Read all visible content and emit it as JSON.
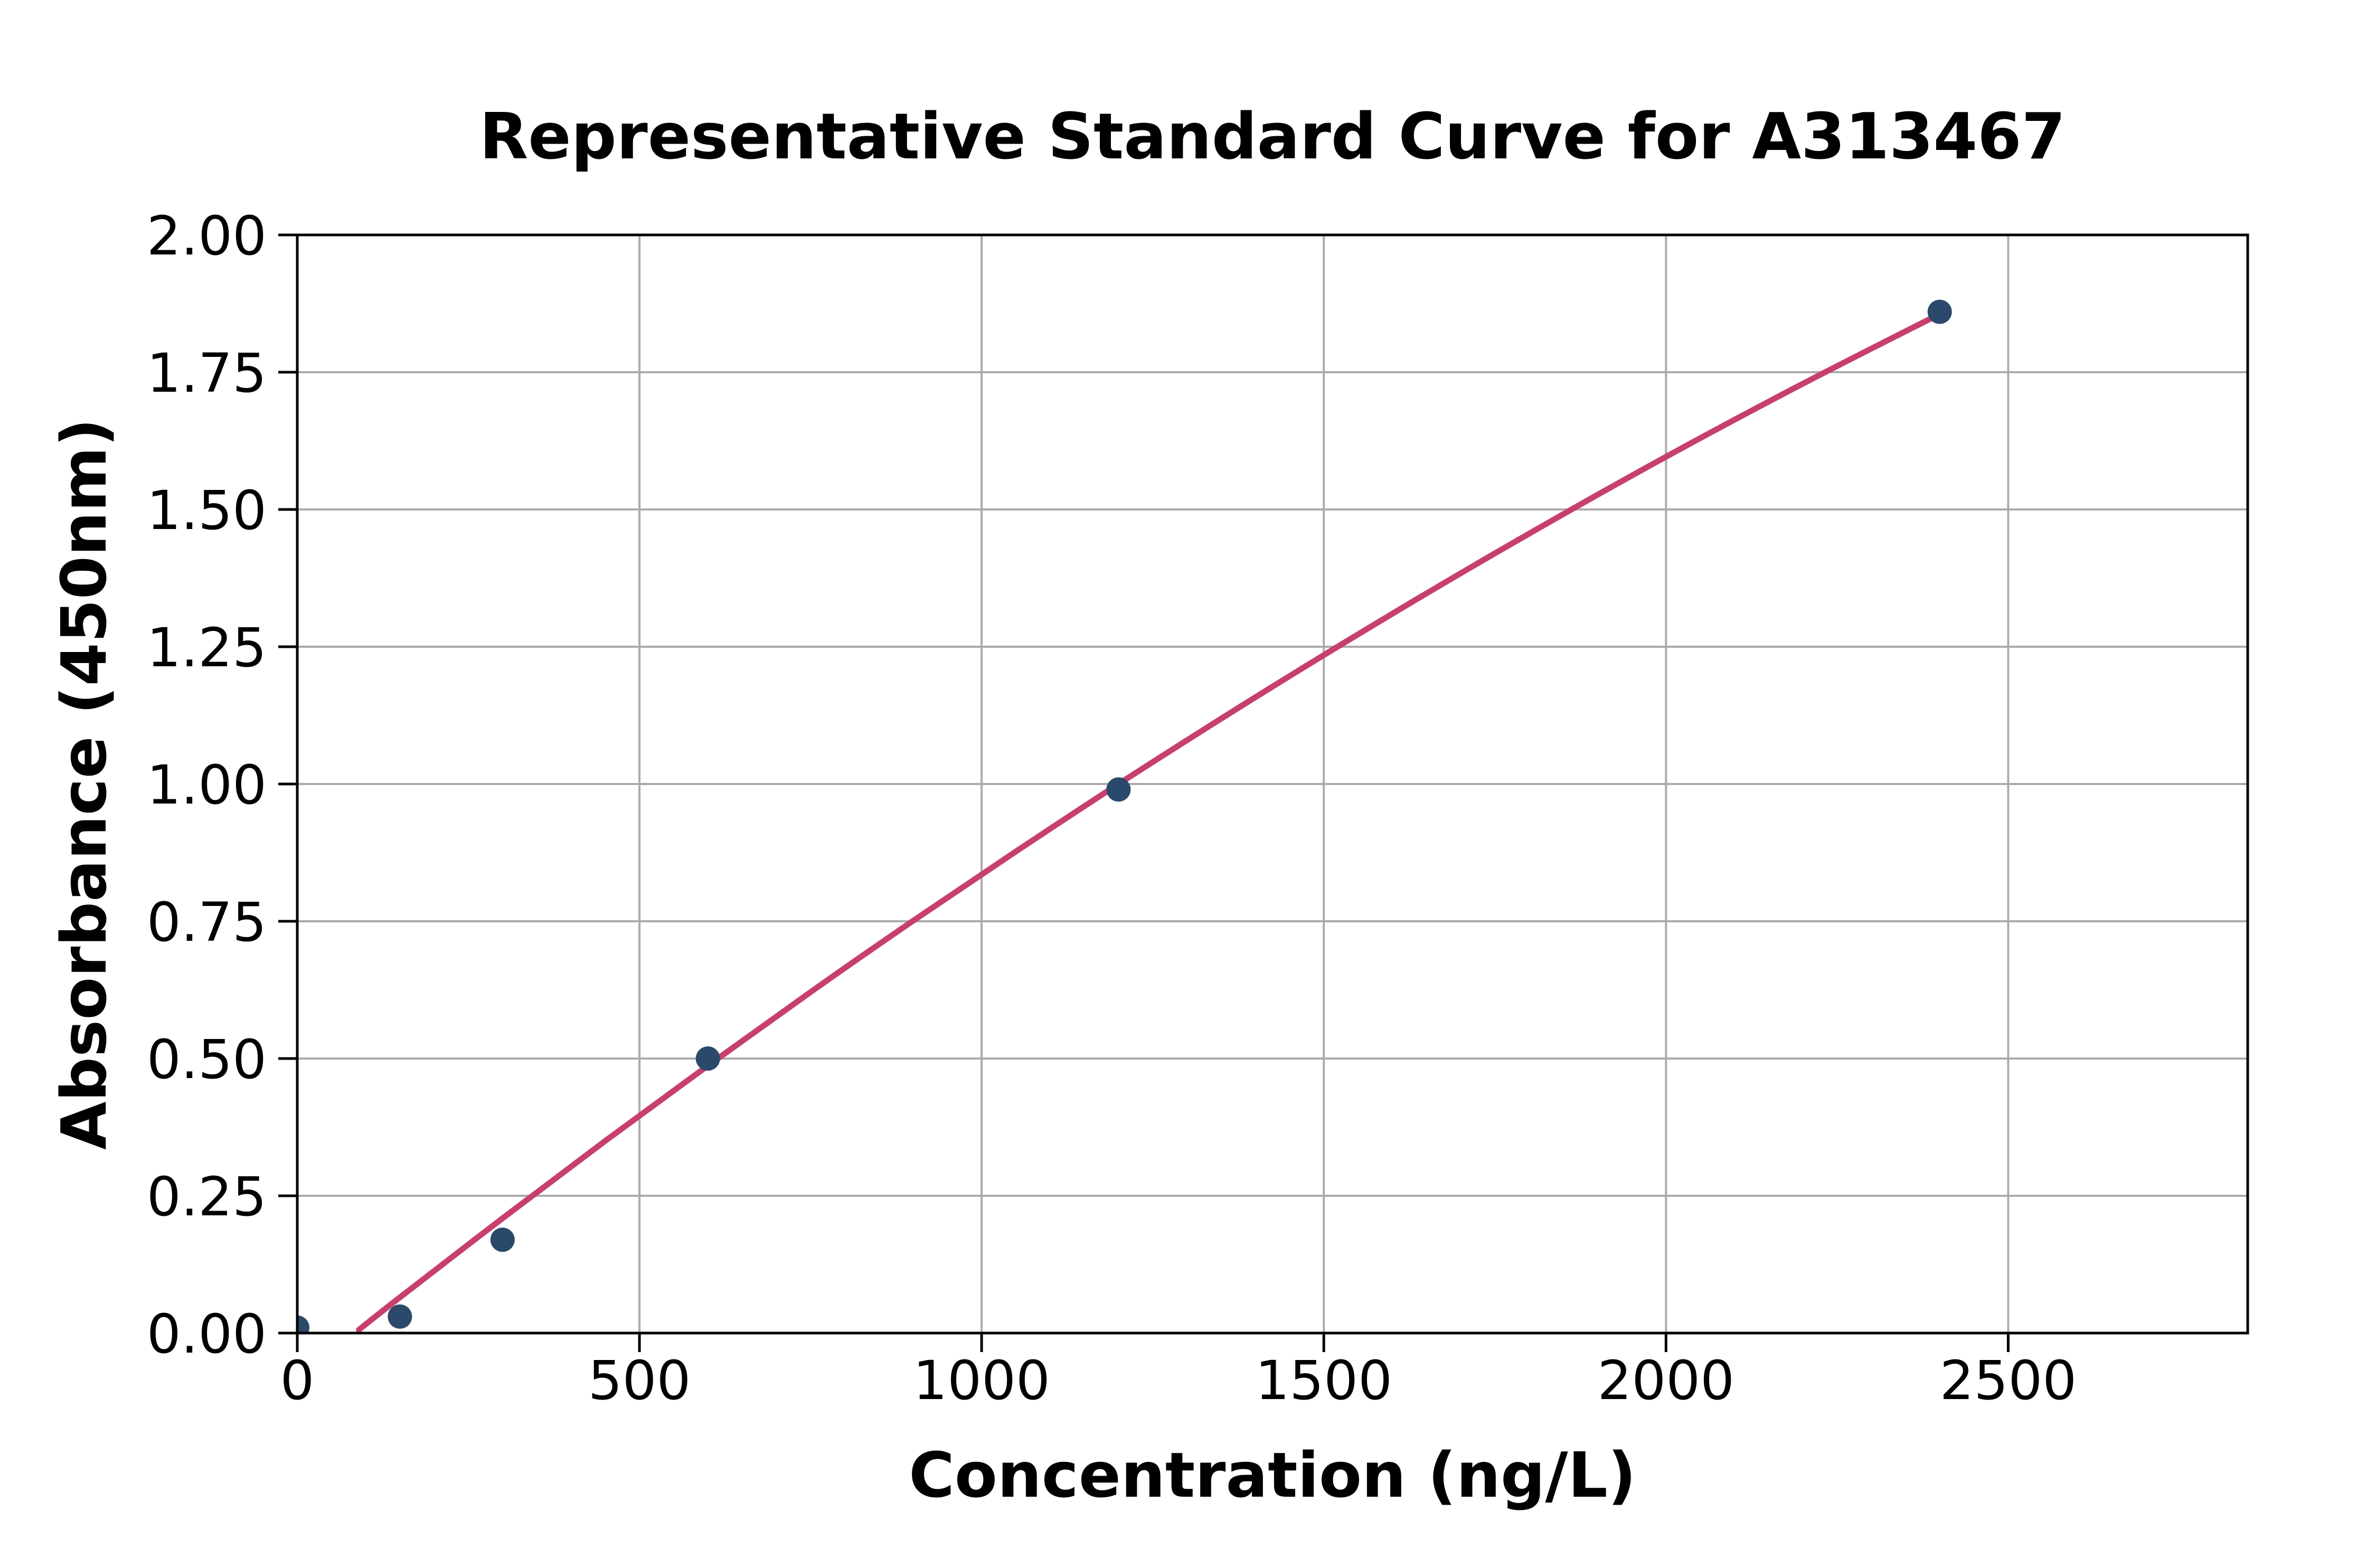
{
  "chart_data": {
    "type": "scatter",
    "title": "Representative Standard Curve for A313467",
    "xlabel": "Concentration (ng/L)",
    "ylabel": "Absorbance (450nm)",
    "xlim": [
      0,
      2850
    ],
    "ylim": [
      0,
      2.0
    ],
    "x_tick_labels": [
      "0",
      "500",
      "1000",
      "1500",
      "2000",
      "2500"
    ],
    "x_tick_values": [
      0,
      500,
      1000,
      1500,
      2000,
      2500
    ],
    "y_tick_labels": [
      "0.00",
      "0.25",
      "0.50",
      "0.75",
      "1.00",
      "1.25",
      "1.50",
      "1.75",
      "2.00"
    ],
    "y_tick_values": [
      0,
      0.25,
      0.5,
      0.75,
      1.0,
      1.25,
      1.5,
      1.75,
      2.0
    ],
    "grid": true,
    "legend_position": "none",
    "series": [
      {
        "name": "standard-points",
        "kind": "scatter",
        "x": [
          0,
          150,
          300,
          600,
          1200,
          2400
        ],
        "y": [
          0.01,
          0.03,
          0.17,
          0.5,
          0.99,
          1.86
        ]
      },
      {
        "name": "fitted-curve",
        "kind": "line",
        "points": [
          [
            90,
            0.006
          ],
          [
            150,
            0.065
          ],
          [
            300,
            0.209
          ],
          [
            450,
            0.35
          ],
          [
            600,
            0.487
          ],
          [
            750,
            0.621
          ],
          [
            900,
            0.751
          ],
          [
            1050,
            0.877
          ],
          [
            1200,
            1.0
          ],
          [
            1400,
            1.158
          ],
          [
            1600,
            1.31
          ],
          [
            1800,
            1.456
          ],
          [
            2000,
            1.596
          ],
          [
            2200,
            1.729
          ],
          [
            2400,
            1.856
          ]
        ]
      }
    ],
    "colors": {
      "marker": "#2B4A6B",
      "curve": "#C7406B",
      "grid": "#ABABAB",
      "axis": "#000000",
      "text": "#000000",
      "background": "#FFFFFF"
    }
  }
}
